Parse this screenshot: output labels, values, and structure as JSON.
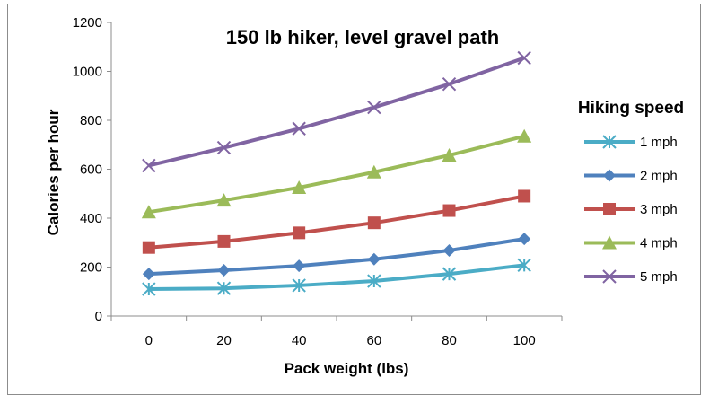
{
  "chart_data": {
    "type": "line",
    "title": "150 lb hiker, level gravel path",
    "xlabel": "Pack weight (lbs)",
    "ylabel": "Calories per hour",
    "x": [
      0,
      20,
      40,
      60,
      80,
      100
    ],
    "ylim": [
      0,
      1200
    ],
    "yticks": [
      0,
      200,
      400,
      600,
      800,
      1000,
      1200
    ],
    "grid": false,
    "legend_title": "Hiking speed",
    "legend_position": "right",
    "series": [
      {
        "name": "1 mph",
        "color": "#4bacc6",
        "marker": "star",
        "values": [
          110,
          113,
          125,
          143,
          172,
          208
        ]
      },
      {
        "name": "2 mph",
        "color": "#4f81bd",
        "marker": "diamond",
        "values": [
          172,
          187,
          205,
          232,
          268,
          315
        ]
      },
      {
        "name": "3 mph",
        "color": "#c0504d",
        "marker": "square",
        "values": [
          280,
          305,
          340,
          381,
          431,
          490
        ]
      },
      {
        "name": "4 mph",
        "color": "#9bbb59",
        "marker": "triangle",
        "values": [
          425,
          473,
          525,
          588,
          657,
          735
        ]
      },
      {
        "name": "5 mph",
        "color": "#8064a2",
        "marker": "x",
        "values": [
          615,
          688,
          766,
          853,
          948,
          1055
        ]
      }
    ]
  }
}
